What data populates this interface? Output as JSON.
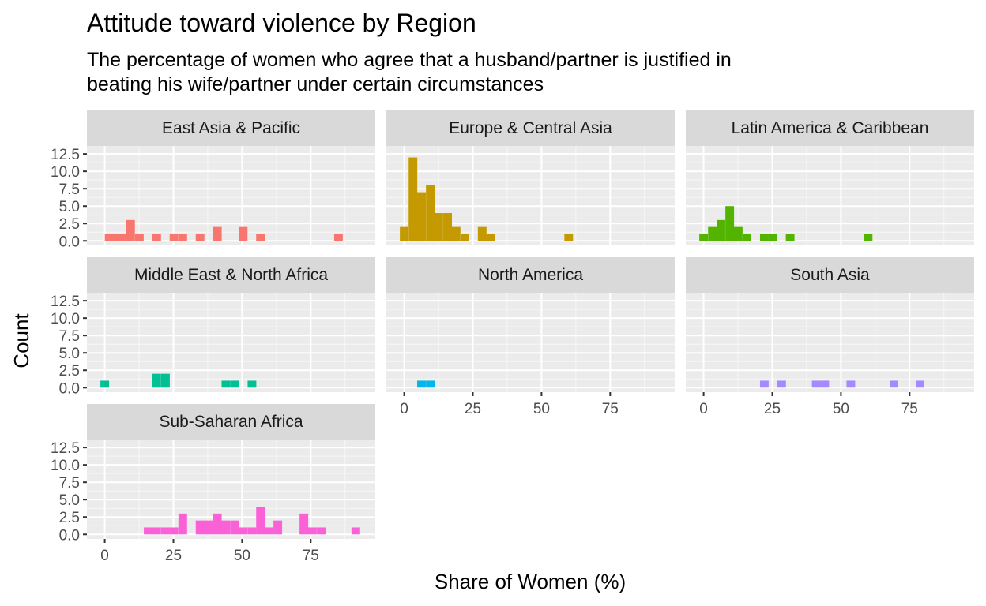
{
  "chart_data": {
    "type": "histogram",
    "title": "Attitude toward violence by Region",
    "subtitle_lines": [
      "The percentage of women who agree that a husband/partner is justified in",
      "beating his wife/partner under certain circumstances"
    ],
    "xlabel": "Share of Women (%)",
    "ylabel": "Count",
    "xlim": [
      -6.5,
      98.5
    ],
    "ylim": [
      -0.65,
      13.65
    ],
    "x_ticks": [
      0,
      25,
      50,
      75
    ],
    "y_ticks": [
      0,
      2.5,
      5,
      7.5,
      10,
      12.5
    ],
    "y_tick_labels": [
      "0.0",
      "2.5",
      "5.0",
      "7.5",
      "10.0",
      "12.5"
    ],
    "bin_width": 3.15,
    "grid": true,
    "legend": "none",
    "facets": [
      {
        "region": "East Asia & Pacific",
        "color": "#F8766D",
        "bins": [
          [
            1.6,
            1
          ],
          [
            4.7,
            1
          ],
          [
            7.9,
            1
          ],
          [
            9.4,
            3
          ],
          [
            12.6,
            1
          ],
          [
            18.9,
            1
          ],
          [
            25.2,
            1
          ],
          [
            28.4,
            1
          ],
          [
            34.7,
            1
          ],
          [
            41.0,
            2
          ],
          [
            50.4,
            2
          ],
          [
            56.7,
            1
          ],
          [
            85.1,
            1
          ]
        ]
      },
      {
        "region": "Europe & Central Asia",
        "color": "#C49A00",
        "bins": [
          [
            0,
            2
          ],
          [
            3.2,
            12
          ],
          [
            6.3,
            7
          ],
          [
            9.5,
            8
          ],
          [
            12.6,
            4
          ],
          [
            15.8,
            4
          ],
          [
            18.9,
            2
          ],
          [
            22.1,
            1
          ],
          [
            28.4,
            2
          ],
          [
            31.5,
            1
          ],
          [
            59.9,
            1
          ]
        ]
      },
      {
        "region": "Latin America & Caribbean",
        "color": "#53B400",
        "bins": [
          [
            0,
            1
          ],
          [
            3.2,
            2
          ],
          [
            6.3,
            3
          ],
          [
            9.5,
            5
          ],
          [
            12.6,
            2
          ],
          [
            15.8,
            1
          ],
          [
            22.1,
            1
          ],
          [
            25.2,
            1
          ],
          [
            31.5,
            1
          ],
          [
            59.9,
            1
          ]
        ]
      },
      {
        "region": "Middle East & North Africa",
        "color": "#00C094",
        "bins": [
          [
            0,
            1
          ],
          [
            18.9,
            2
          ],
          [
            22.1,
            2
          ],
          [
            44.1,
            1
          ],
          [
            47.3,
            1
          ],
          [
            53.6,
            1
          ]
        ]
      },
      {
        "region": "North America",
        "color": "#00B6EB",
        "bins": [
          [
            6.3,
            1
          ],
          [
            9.5,
            1
          ]
        ]
      },
      {
        "region": "South Asia",
        "color": "#A58AFF",
        "bins": [
          [
            22.1,
            1
          ],
          [
            28.4,
            1
          ],
          [
            41.0,
            1
          ],
          [
            44.1,
            1
          ],
          [
            53.6,
            1
          ],
          [
            69.3,
            1
          ],
          [
            78.8,
            1
          ]
        ]
      },
      {
        "region": "Sub-Saharan Africa",
        "color": "#FB61D7",
        "bins": [
          [
            15.8,
            1
          ],
          [
            18.9,
            1
          ],
          [
            22.1,
            1
          ],
          [
            25.2,
            1
          ],
          [
            28.4,
            3
          ],
          [
            34.7,
            2
          ],
          [
            37.8,
            2
          ],
          [
            41.0,
            3
          ],
          [
            44.1,
            2
          ],
          [
            47.3,
            2
          ],
          [
            50.4,
            1
          ],
          [
            53.6,
            1
          ],
          [
            56.7,
            4
          ],
          [
            59.9,
            1
          ],
          [
            63.0,
            2
          ],
          [
            72.5,
            3
          ],
          [
            75.6,
            1
          ],
          [
            78.8,
            1
          ],
          [
            91.4,
            1
          ]
        ]
      }
    ]
  }
}
